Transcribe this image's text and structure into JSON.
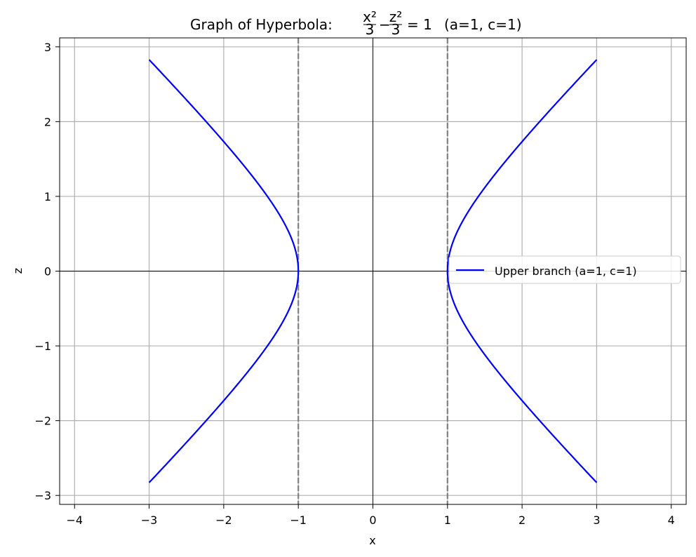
{
  "chart_data": {
    "type": "line",
    "title": {
      "prefix": "Graph of Hyperbola:",
      "frac1_num": "x²",
      "frac1_den": "3",
      "minus": "−",
      "frac2_num": "z²",
      "frac2_den": "3",
      "equals": "= 1",
      "suffix": "(a=1, c=1)"
    },
    "xlabel": "x",
    "ylabel": "z",
    "xlim": [
      -4.2,
      4.2
    ],
    "ylim": [
      -3.12,
      3.12
    ],
    "xticks": [
      -4,
      -3,
      -2,
      -1,
      0,
      1,
      2,
      3,
      4
    ],
    "yticks": [
      -3,
      -2,
      -1,
      0,
      1,
      2,
      3
    ],
    "xtick_labels": [
      "−4",
      "−3",
      "−2",
      "−1",
      "0",
      "1",
      "2",
      "3",
      "4"
    ],
    "ytick_labels": [
      "−3",
      "−2",
      "−1",
      "0",
      "1",
      "2",
      "3"
    ],
    "grid": true,
    "legend_position": "center-right",
    "series": [
      {
        "name": "Upper branch (a=1, c=1)",
        "color": "#0000ff",
        "branches": [
          {
            "x": [
              1.0,
              1.01,
              1.05,
              1.1,
              1.2,
              1.35,
              1.5,
              1.75,
              2.0,
              2.25,
              2.5,
              2.75,
              3.0
            ],
            "z": [
              0.0,
              0.142,
              0.32,
              0.458,
              0.663,
              0.907,
              1.118,
              1.436,
              1.732,
              2.016,
              2.291,
              2.562,
              2.828
            ]
          },
          {
            "x": [
              1.0,
              1.01,
              1.05,
              1.1,
              1.2,
              1.35,
              1.5,
              1.75,
              2.0,
              2.25,
              2.5,
              2.75,
              3.0
            ],
            "z": [
              0.0,
              -0.142,
              -0.32,
              -0.458,
              -0.663,
              -0.907,
              -1.118,
              -1.436,
              -1.732,
              -2.016,
              -2.291,
              -2.562,
              -2.828
            ]
          },
          {
            "x": [
              -1.0,
              -1.01,
              -1.05,
              -1.1,
              -1.2,
              -1.35,
              -1.5,
              -1.75,
              -2.0,
              -2.25,
              -2.5,
              -2.75,
              -3.0
            ],
            "z": [
              0.0,
              0.142,
              0.32,
              0.458,
              0.663,
              0.907,
              1.118,
              1.436,
              1.732,
              2.016,
              2.291,
              2.562,
              2.828
            ]
          },
          {
            "x": [
              -1.0,
              -1.01,
              -1.05,
              -1.1,
              -1.2,
              -1.35,
              -1.5,
              -1.75,
              -2.0,
              -2.25,
              -2.5,
              -2.75,
              -3.0
            ],
            "z": [
              0.0,
              -0.142,
              -0.32,
              -0.458,
              -0.663,
              -0.907,
              -1.118,
              -1.436,
              -1.732,
              -2.016,
              -2.291,
              -2.562,
              -2.828
            ]
          }
        ]
      }
    ],
    "reference_lines": {
      "vertical_dashed": [
        -1,
        1
      ],
      "dashed_color": "#808080",
      "axes_color": "#000000"
    }
  }
}
